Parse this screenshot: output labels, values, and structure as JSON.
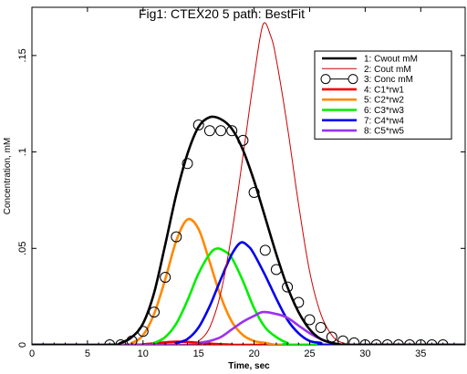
{
  "chart_data": {
    "type": "line",
    "title": "Fig1: CTEX20 5 path: BestFit",
    "xlabel": "Time, sec",
    "ylabel": "Concentration, mM",
    "xlim": [
      0,
      39
    ],
    "ylim": [
      0,
      0.175
    ],
    "xticks": [
      0,
      5,
      10,
      15,
      20,
      25,
      30,
      35
    ],
    "xtick_labels": [
      "0",
      "5",
      "10",
      "15",
      "20",
      "25",
      "30",
      "35"
    ],
    "yticks": [
      0,
      0.05,
      0.1,
      0.15
    ],
    "ytick_labels": [
      "0",
      ".05",
      ".1",
      ".15"
    ],
    "grid": false,
    "legend_position": "top-right",
    "series": [
      {
        "name": "1: Cwout mM",
        "color": "#000000",
        "style": "line-thick",
        "x": [
          0,
          7,
          8,
          9,
          10,
          11,
          12,
          13,
          14,
          15,
          16,
          17,
          18,
          19,
          20,
          21,
          22,
          23,
          24,
          25,
          26,
          27,
          28,
          30,
          32,
          34,
          39
        ],
        "y": [
          0,
          0.0,
          0.001,
          0.004,
          0.011,
          0.027,
          0.052,
          0.078,
          0.099,
          0.113,
          0.118,
          0.117,
          0.112,
          0.101,
          0.085,
          0.066,
          0.047,
          0.03,
          0.017,
          0.008,
          0.003,
          0.001,
          0.0,
          0,
          0,
          0,
          0
        ]
      },
      {
        "name": "2: Cout mM",
        "color": "#cc0000",
        "style": "line-thin",
        "x": [
          0,
          14,
          15,
          16,
          17,
          18,
          19,
          20,
          20.8,
          21.5,
          22,
          23,
          24,
          25,
          26,
          27,
          28,
          30,
          39
        ],
        "y": [
          0,
          0.0,
          0.002,
          0.009,
          0.027,
          0.058,
          0.098,
          0.139,
          0.166,
          0.16,
          0.148,
          0.113,
          0.073,
          0.038,
          0.016,
          0.005,
          0.001,
          0,
          0
        ]
      },
      {
        "name": "3: Conc mM",
        "color": "#000000",
        "style": "circles",
        "x": [
          7,
          8,
          9,
          10,
          11,
          12,
          13,
          14,
          15,
          16,
          17,
          18,
          19,
          20,
          21,
          22,
          23,
          24,
          25,
          26,
          27,
          28,
          29,
          30,
          31,
          32,
          33,
          34,
          35,
          36,
          37
        ],
        "y": [
          0.0,
          0.0,
          0.002,
          0.007,
          0.017,
          0.035,
          0.056,
          0.094,
          0.114,
          0.111,
          0.111,
          0.111,
          0.106,
          0.079,
          0.049,
          0.039,
          0.03,
          0.022,
          0.013,
          0.009,
          0.004,
          0.002,
          0.001,
          0.0,
          0.0,
          0.0,
          0.0,
          0.0,
          0.0,
          0.0,
          0.0
        ]
      },
      {
        "name": "4: C1*rw1",
        "color": "#ee0000",
        "style": "line-thick",
        "x": [
          0,
          9,
          10,
          11,
          12,
          13,
          14,
          15,
          16,
          17,
          18,
          19,
          39
        ],
        "y": [
          0,
          0.0,
          0.0003,
          0.0008,
          0.0013,
          0.0016,
          0.0015,
          0.0011,
          0.0006,
          0.0003,
          0.0001,
          0.0,
          0
        ]
      },
      {
        "name": "5: C2*rw2",
        "color": "#ff8800",
        "style": "line-thick",
        "x": [
          0,
          8,
          9,
          10,
          11,
          12,
          13,
          14,
          15,
          16,
          17,
          18,
          19,
          20,
          21,
          22,
          24,
          39
        ],
        "y": [
          0,
          0.0,
          0.001,
          0.005,
          0.016,
          0.034,
          0.054,
          0.065,
          0.06,
          0.043,
          0.025,
          0.012,
          0.005,
          0.002,
          0.001,
          0.0,
          0,
          0
        ]
      },
      {
        "name": "6: C3*rw3",
        "color": "#00ee00",
        "style": "line-thick",
        "x": [
          0,
          10,
          11,
          12,
          13,
          14,
          15,
          16,
          16.7,
          17.5,
          18,
          19,
          20,
          21,
          22,
          23,
          24,
          39
        ],
        "y": [
          0,
          0.0,
          0.001,
          0.004,
          0.011,
          0.023,
          0.037,
          0.047,
          0.05,
          0.048,
          0.045,
          0.033,
          0.019,
          0.009,
          0.004,
          0.001,
          0.0,
          0
        ]
      },
      {
        "name": "7: C4*rw4",
        "color": "#0000ee",
        "style": "line-thick",
        "x": [
          0,
          12,
          13,
          14,
          15,
          16,
          17,
          18,
          18.8,
          19.5,
          20,
          21,
          22,
          23,
          24,
          25,
          26,
          27,
          39
        ],
        "y": [
          0,
          0.0,
          0.001,
          0.003,
          0.009,
          0.02,
          0.034,
          0.047,
          0.053,
          0.051,
          0.047,
          0.036,
          0.024,
          0.013,
          0.006,
          0.002,
          0.001,
          0.0,
          0
        ]
      },
      {
        "name": "8: C5*rw5",
        "color": "#9933ee",
        "style": "line-thick",
        "x": [
          0,
          14,
          15,
          16,
          17,
          18,
          19,
          20,
          20.8,
          22,
          23,
          24,
          25,
          26,
          27,
          28,
          29,
          39
        ],
        "y": [
          0,
          0.0,
          0.001,
          0.002,
          0.004,
          0.008,
          0.012,
          0.015,
          0.017,
          0.016,
          0.014,
          0.01,
          0.006,
          0.003,
          0.001,
          0.0,
          0.0,
          0
        ]
      }
    ]
  }
}
